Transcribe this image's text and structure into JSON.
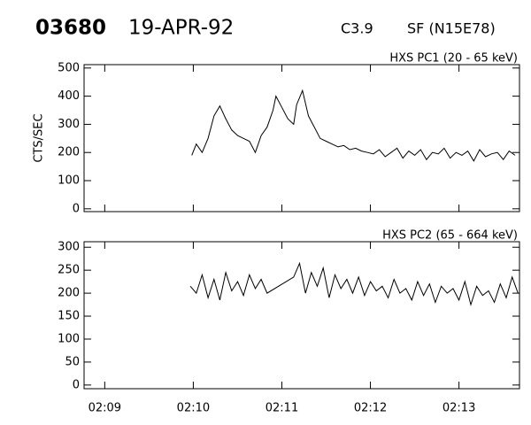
{
  "header": {
    "id": "03680",
    "date": "19-APR-92",
    "class": "C3.9",
    "flare": "SF (N15E78)"
  },
  "chart_data": [
    {
      "type": "line",
      "title": "HXS PC1 (20 - 65 keV)",
      "y_label": "CTS/SEC",
      "color": "#000000",
      "x": [
        "02:09:59",
        "02:10:02",
        "02:10:06",
        "02:10:10",
        "02:10:14",
        "02:10:18",
        "02:10:22",
        "02:10:26",
        "02:10:30",
        "02:10:34",
        "02:10:38",
        "02:10:42",
        "02:10:46",
        "02:10:50",
        "02:10:54",
        "02:10:56",
        "02:11:00",
        "02:11:04",
        "02:11:08",
        "02:11:10",
        "02:11:14",
        "02:11:18",
        "02:11:22",
        "02:11:26",
        "02:11:30",
        "02:11:34",
        "02:11:38",
        "02:11:42",
        "02:11:46",
        "02:11:50",
        "02:11:54",
        "02:11:58",
        "02:12:02",
        "02:12:06",
        "02:12:10",
        "02:12:14",
        "02:12:18",
        "02:12:22",
        "02:12:26",
        "02:12:30",
        "02:12:34",
        "02:12:38",
        "02:12:42",
        "02:12:46",
        "02:12:50",
        "02:12:54",
        "02:12:58",
        "02:13:02",
        "02:13:06",
        "02:13:10",
        "02:13:14",
        "02:13:18",
        "02:13:22",
        "02:13:26",
        "02:13:30",
        "02:13:34",
        "02:13:38"
      ],
      "values": [
        190,
        230,
        200,
        250,
        330,
        365,
        320,
        280,
        260,
        250,
        240,
        200,
        260,
        290,
        350,
        400,
        360,
        320,
        300,
        370,
        420,
        330,
        290,
        250,
        240,
        230,
        220,
        225,
        210,
        215,
        205,
        200,
        195,
        210,
        185,
        200,
        215,
        180,
        205,
        190,
        210,
        175,
        200,
        195,
        215,
        180,
        200,
        190,
        205,
        170,
        210,
        185,
        195,
        200,
        175,
        205,
        190
      ],
      "xlim": [
        "02:08:46",
        "02:13:41"
      ],
      "xticks": [
        "02:09",
        "02:10",
        "02:11",
        "02:12",
        "02:13"
      ],
      "ylim": [
        -10,
        512
      ],
      "yticks": [
        0,
        100,
        200,
        300,
        400,
        500
      ]
    },
    {
      "type": "line",
      "title": "HXS PC2 (65 - 664 keV)",
      "color": "#000000",
      "x": [
        "02:09:58",
        "02:10:02",
        "02:10:06",
        "02:10:10",
        "02:10:14",
        "02:10:18",
        "02:10:22",
        "02:10:26",
        "02:10:30",
        "02:10:34",
        "02:10:38",
        "02:10:42",
        "02:10:46",
        "02:10:50",
        "02:11:08",
        "02:11:12",
        "02:11:16",
        "02:11:20",
        "02:11:24",
        "02:11:28",
        "02:11:32",
        "02:11:36",
        "02:11:40",
        "02:11:44",
        "02:11:48",
        "02:11:52",
        "02:11:56",
        "02:12:00",
        "02:12:04",
        "02:12:08",
        "02:12:12",
        "02:12:16",
        "02:12:20",
        "02:12:24",
        "02:12:28",
        "02:12:32",
        "02:12:36",
        "02:12:40",
        "02:12:44",
        "02:12:48",
        "02:12:52",
        "02:12:56",
        "02:13:00",
        "02:13:04",
        "02:13:08",
        "02:13:12",
        "02:13:16",
        "02:13:20",
        "02:13:24",
        "02:13:28",
        "02:13:32",
        "02:13:36",
        "02:13:40"
      ],
      "values": [
        215,
        200,
        240,
        190,
        230,
        185,
        245,
        205,
        225,
        195,
        240,
        210,
        230,
        200,
        235,
        265,
        200,
        245,
        215,
        255,
        190,
        240,
        210,
        230,
        200,
        235,
        195,
        225,
        205,
        215,
        190,
        230,
        200,
        210,
        185,
        225,
        195,
        220,
        180,
        215,
        200,
        210,
        185,
        225,
        175,
        215,
        195,
        205,
        180,
        220,
        190,
        235,
        200
      ],
      "xlim": [
        "02:08:46",
        "02:13:41"
      ],
      "xticks": [
        "02:09",
        "02:10",
        "02:11",
        "02:12",
        "02:13"
      ],
      "ylim": [
        -8,
        312
      ],
      "yticks": [
        0,
        50,
        100,
        150,
        200,
        250,
        300
      ]
    }
  ]
}
